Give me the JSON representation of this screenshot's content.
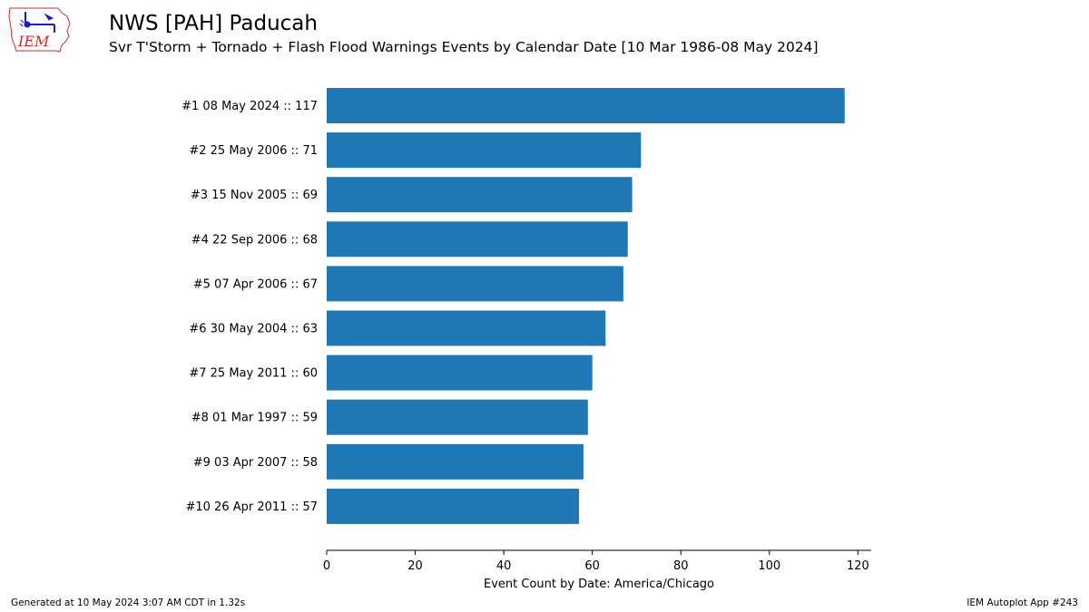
{
  "header": {
    "title": "NWS [PAH] Paducah",
    "subtitle": "Svr T'Storm + Tornado + Flash Flood Warnings Events by Calendar Date [10 Mar 1986-08 May 2024]",
    "logo_text": "IEM"
  },
  "footer": {
    "generated": "Generated at 10 May 2024 3:07 AM CDT in 1.32s",
    "app": "IEM Autoplot App #243"
  },
  "colors": {
    "bar": "#1f77b4",
    "logo_red": "#d62728",
    "logo_blue": "#1a1acc"
  },
  "chart_data": {
    "type": "bar",
    "orientation": "horizontal",
    "categories": [
      "#1  08 May 2024 :: 117",
      "#2  25 May 2006 :: 71",
      "#3  15 Nov 2005 :: 69",
      "#4  22 Sep 2006 :: 68",
      "#5  07 Apr 2006 :: 67",
      "#6  30 May 2004 :: 63",
      "#7  25 May 2011 :: 60",
      "#8  01 Mar 1997 :: 59",
      "#9  03 Apr 2007 :: 58",
      "#10  26 Apr 2011 :: 57"
    ],
    "values": [
      117,
      71,
      69,
      68,
      67,
      63,
      60,
      59,
      58,
      57
    ],
    "xlabel": "Event Count by Date: America/Chicago",
    "ylabel": "",
    "xlim": [
      0,
      123
    ],
    "xticks": [
      0,
      20,
      40,
      60,
      80,
      100,
      120
    ],
    "grid": false
  }
}
